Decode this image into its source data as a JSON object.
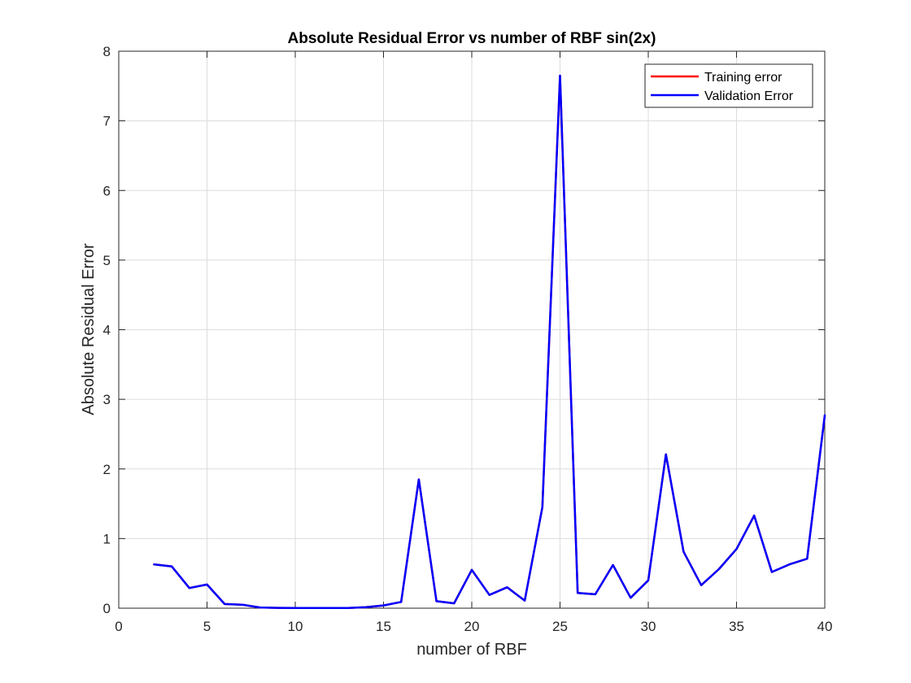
{
  "chart_data": {
    "type": "line",
    "title": "Absolute Residual Error vs number of RBF sin(2x)",
    "xlabel": "number of RBF",
    "ylabel": "Absolute Residual Error",
    "xlim": [
      0,
      40
    ],
    "ylim": [
      0,
      8
    ],
    "xticks": [
      "0",
      "5",
      "10",
      "15",
      "20",
      "25",
      "30",
      "35",
      "40"
    ],
    "yticks": [
      "0",
      "1",
      "2",
      "3",
      "4",
      "5",
      "6",
      "7",
      "8"
    ],
    "grid": true,
    "legend_position": "top-right",
    "x": [
      2,
      3,
      4,
      5,
      6,
      7,
      8,
      9,
      10,
      11,
      12,
      13,
      14,
      15,
      16,
      17,
      18,
      19,
      20,
      21,
      22,
      23,
      24,
      25,
      26,
      27,
      28,
      29,
      30,
      31,
      32,
      33,
      34,
      35,
      36,
      37,
      38,
      39,
      40
    ],
    "series": [
      {
        "name": "Training error",
        "color": "#ff0000",
        "values": [
          0.63,
          0.6,
          0.29,
          0.34,
          0.06,
          0.05,
          0.01,
          0.005,
          0.003,
          0.003,
          0.003,
          0.003,
          0.015,
          0.04,
          0.09,
          1.85,
          0.1,
          0.07,
          0.55,
          0.19,
          0.3,
          0.11,
          1.45,
          7.65,
          0.22,
          0.2,
          0.62,
          0.15,
          0.4,
          2.21,
          0.81,
          0.33,
          0.56,
          0.85,
          1.33,
          0.52,
          0.63,
          0.71,
          2.77
        ]
      },
      {
        "name": "Validation Error",
        "color": "#0000ff",
        "values": [
          0.63,
          0.6,
          0.29,
          0.34,
          0.06,
          0.05,
          0.01,
          0.005,
          0.003,
          0.003,
          0.003,
          0.003,
          0.015,
          0.04,
          0.09,
          1.85,
          0.1,
          0.07,
          0.55,
          0.19,
          0.3,
          0.11,
          1.45,
          7.65,
          0.22,
          0.2,
          0.62,
          0.15,
          0.4,
          2.21,
          0.81,
          0.33,
          0.56,
          0.85,
          1.33,
          0.52,
          0.63,
          0.71,
          2.77
        ]
      }
    ]
  }
}
